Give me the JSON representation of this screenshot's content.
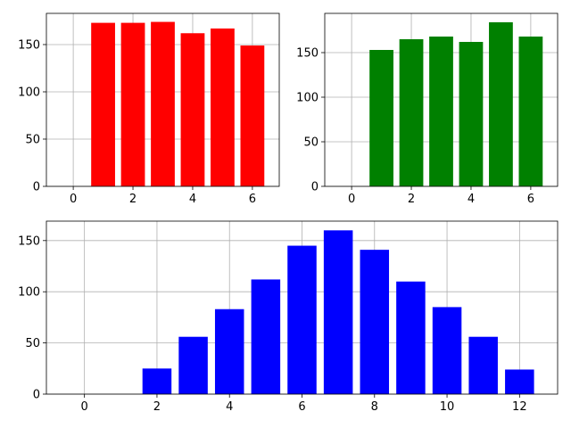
{
  "chart_data": [
    {
      "type": "bar",
      "grid": true,
      "color": "#ff0000",
      "x": [
        0,
        1,
        2,
        3,
        4,
        5,
        6
      ],
      "values": [
        0,
        173,
        173,
        174,
        162,
        167,
        149
      ],
      "xlim": [
        -0.9,
        6.9
      ],
      "ylim": [
        0,
        183
      ],
      "xticks": [
        0,
        2,
        4,
        6
      ],
      "yticks": [
        0,
        50,
        100,
        150
      ]
    },
    {
      "type": "bar",
      "grid": true,
      "color": "#008000",
      "x": [
        0,
        1,
        2,
        3,
        4,
        5,
        6
      ],
      "values": [
        0,
        153,
        165,
        168,
        162,
        184,
        168
      ],
      "xlim": [
        -0.9,
        6.9
      ],
      "ylim": [
        0,
        194
      ],
      "xticks": [
        0,
        2,
        4,
        6
      ],
      "yticks": [
        0,
        50,
        100,
        150
      ]
    },
    {
      "type": "bar",
      "grid": true,
      "color": "#0000ff",
      "x": [
        0,
        1,
        2,
        3,
        4,
        5,
        6,
        7,
        8,
        9,
        10,
        11,
        12
      ],
      "values": [
        0,
        0,
        25,
        56,
        83,
        112,
        145,
        160,
        141,
        110,
        85,
        56,
        24
      ],
      "xlim": [
        -1.05,
        13.05
      ],
      "ylim": [
        0,
        169
      ],
      "xticks": [
        0,
        2,
        4,
        6,
        8,
        10,
        12
      ],
      "yticks": [
        0,
        50,
        100,
        150
      ]
    }
  ]
}
